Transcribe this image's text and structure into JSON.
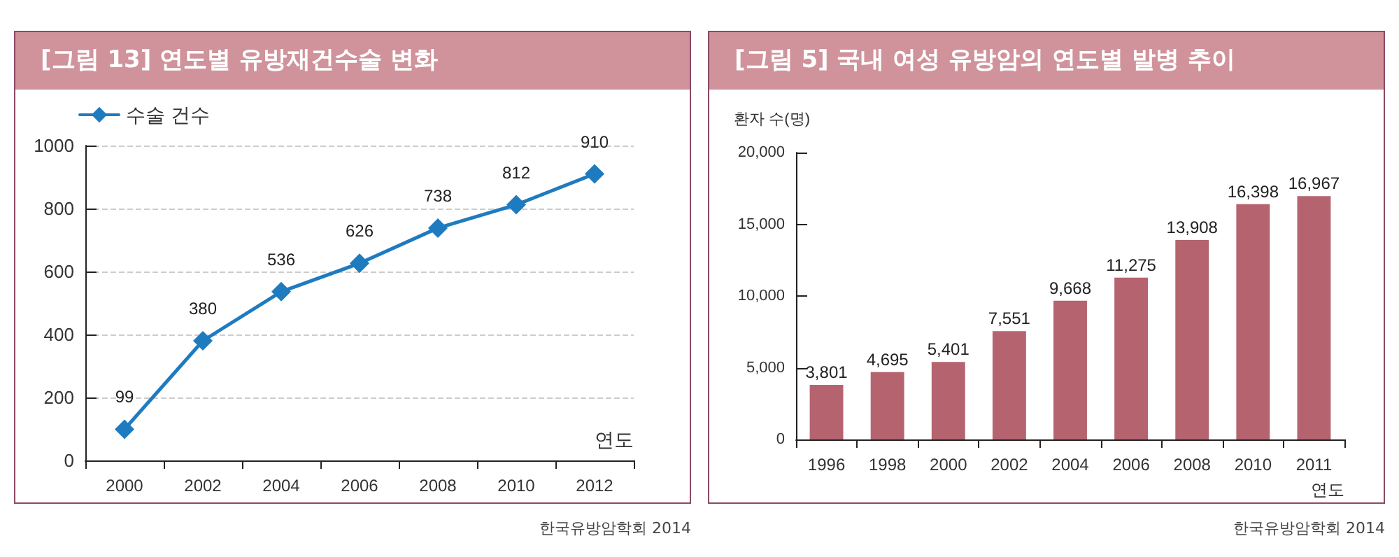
{
  "chart_data": [
    {
      "type": "line",
      "title": "[그림 13] 연도별 유방재건수술 변화",
      "xlabel": "연도",
      "categories": [
        "2000",
        "2002",
        "2004",
        "2006",
        "2008",
        "2010",
        "2012"
      ],
      "series": [
        {
          "name": "수술 건수",
          "color": "#1f7bbf",
          "values": [
            99,
            380,
            536,
            626,
            738,
            812,
            910
          ]
        }
      ],
      "ylim": [
        0,
        1000
      ],
      "yticks": [
        0,
        200,
        400,
        600,
        800,
        1000
      ],
      "grid": "y",
      "legend": "top left",
      "marker": "diamond",
      "line_style": "solid",
      "data_labels": true,
      "annotations": [
        "한국유방암학회 2014"
      ]
    },
    {
      "type": "bar",
      "title": "[그림 5] 국내 여성 유방암의 연도별 발병 추이",
      "xlabel": "연도",
      "ylabel": "환자 수(명)",
      "categories": [
        "1996",
        "1998",
        "2000",
        "2002",
        "2004",
        "2006",
        "2008",
        "2010",
        "2011"
      ],
      "values": [
        3801,
        4695,
        5401,
        7551,
        9668,
        11275,
        13908,
        16398,
        16967
      ],
      "color": "#b5646f",
      "ylim": [
        0,
        20000
      ],
      "yticks": [
        {
          "value": 0,
          "label": "0"
        },
        {
          "value": 5000,
          "label": "5,000"
        },
        {
          "value": 10000,
          "label": "10,000"
        },
        {
          "value": 15000,
          "label": "15,000"
        },
        {
          "value": 20000,
          "label": "20,000"
        }
      ],
      "grid": false,
      "legend": false,
      "value_labels": [
        "3,801",
        "4,695",
        "5,401",
        "7,551",
        "9,668",
        "11,275",
        "13,908",
        "16,398",
        "16,967"
      ],
      "annotations": [
        "한국유방암학회 2014"
      ]
    }
  ]
}
